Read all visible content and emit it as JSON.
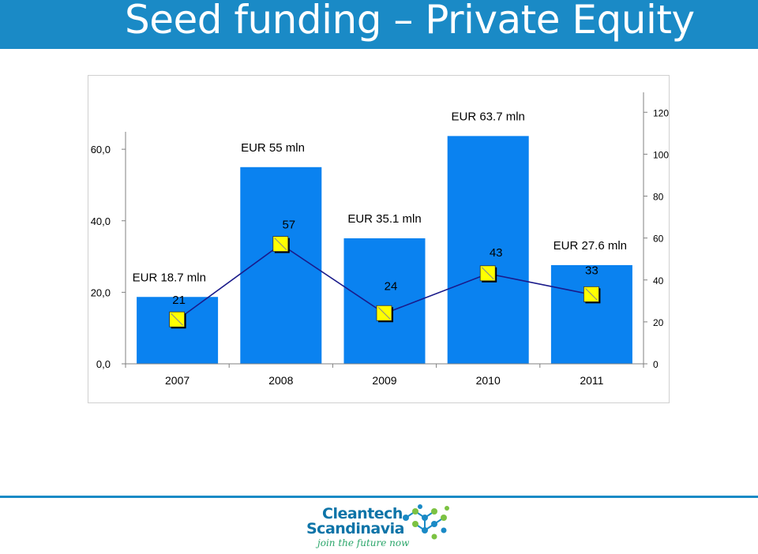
{
  "header": {
    "title": "Seed funding – Private Equity"
  },
  "chart_data": {
    "type": "bar",
    "categories": [
      "2007",
      "2008",
      "2009",
      "2010",
      "2011"
    ],
    "bar_values": [
      18.7,
      55,
      35.1,
      63.7,
      27.6
    ],
    "bar_labels": [
      "EUR 18.7 mln",
      "EUR 55 mln",
      "EUR 35.1 mln",
      "EUR 63.7 mln",
      "EUR 27.6 mln"
    ],
    "line_values": [
      21,
      57,
      24,
      43,
      33
    ],
    "y_left": {
      "range": [
        0,
        64
      ],
      "ticks": [
        "0,0",
        "20,0",
        "40,0",
        "60,0"
      ],
      "tick_values": [
        0,
        20,
        40,
        60
      ]
    },
    "y_right": {
      "range": [
        0,
        128
      ],
      "ticks": [
        "0",
        "20",
        "40",
        "60",
        "80",
        "100",
        "120"
      ],
      "tick_values": [
        0,
        20,
        40,
        60,
        80,
        100,
        120
      ]
    },
    "colors": {
      "bar": "#0a82f0",
      "line": "#1a1a8a",
      "marker": "#ffff00",
      "axis": "#808080"
    },
    "grid": false,
    "legend": "none"
  },
  "footer": {
    "logo_line1": "Cleantech",
    "logo_line2": "Scandinavia",
    "logo_tagline": "join the future now"
  }
}
